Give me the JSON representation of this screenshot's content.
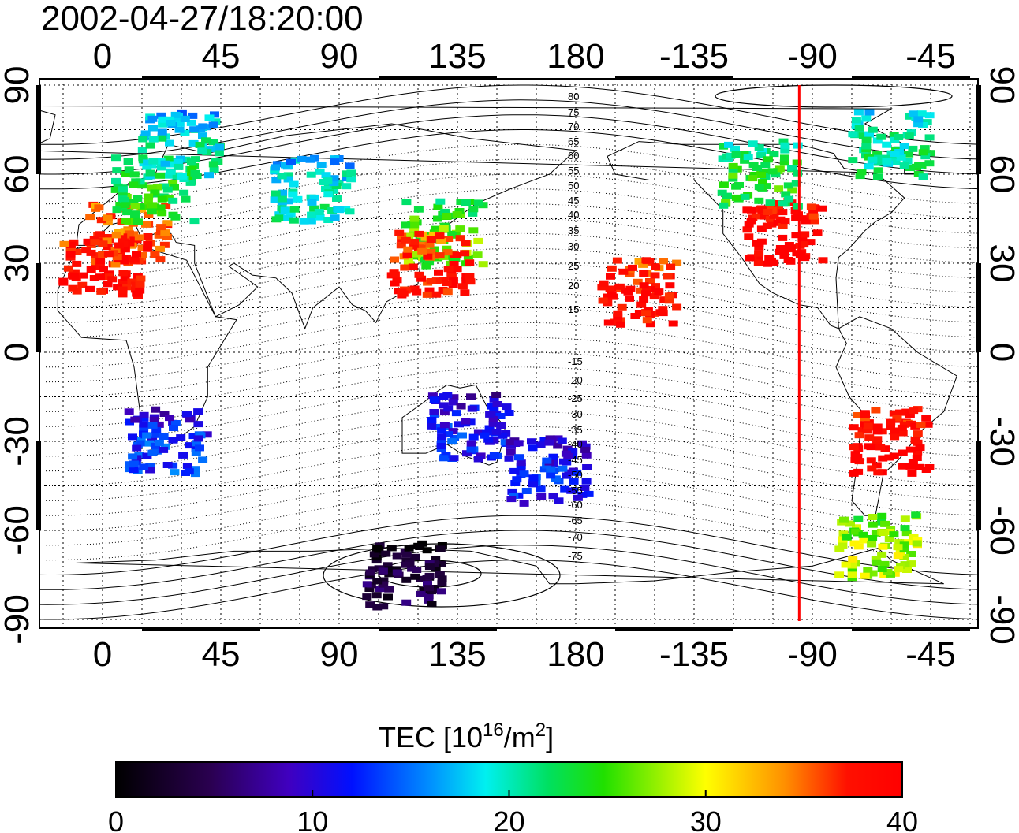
{
  "title": "2002-04-27/18:20:00",
  "map": {
    "lon_ticks": [
      "0",
      "45",
      "90",
      "135",
      "180",
      "-135",
      "-90",
      "-45"
    ],
    "lat_ticks": [
      "90",
      "60",
      "30",
      "0",
      "-30",
      "-60",
      "-90"
    ],
    "contour_labels": [
      "80",
      "75",
      "70",
      "65",
      "60",
      "55",
      "50",
      "45",
      "40",
      "35",
      "30",
      "25",
      "20",
      "15",
      "-15",
      "-20",
      "-25",
      "-30",
      "-35",
      "-40",
      "-45",
      "-50",
      "-55",
      "-60",
      "-65",
      "-70",
      "-75"
    ],
    "marker_longitude": -95,
    "colors": {
      "marker": "#ff0000",
      "frame": "#000000"
    }
  },
  "colorbar": {
    "label_main": "TEC  [10",
    "label_exp": "16",
    "label_mid": "/m",
    "label_exp2": "2",
    "label_end": "]",
    "ticks": [
      "0",
      "10",
      "20",
      "30",
      "40"
    ],
    "range": [
      0,
      40
    ]
  },
  "chart_data": {
    "type": "heatmap",
    "title": "2002-04-27/18:20:00",
    "xlabel": "",
    "ylabel": "",
    "x_ticks": [
      "0",
      "45",
      "90",
      "135",
      "180",
      "-135",
      "-90",
      "-45"
    ],
    "y_ticks": [
      "90",
      "60",
      "30",
      "0",
      "-30",
      "-60",
      "-90"
    ],
    "colorbar_label": "TEC [10^16/m^2]",
    "value_range": [
      0,
      40
    ],
    "regions": [
      {
        "lon": 10,
        "lat": 40,
        "value": 37
      },
      {
        "lon": 20,
        "lat": 55,
        "value": 24
      },
      {
        "lon": 0,
        "lat": 30,
        "value": 39
      },
      {
        "lon": 30,
        "lat": 70,
        "value": 20
      },
      {
        "lon": 80,
        "lat": 55,
        "value": 20
      },
      {
        "lon": 130,
        "lat": 40,
        "value": 26
      },
      {
        "lon": 125,
        "lat": 30,
        "value": 38
      },
      {
        "lon": 140,
        "lat": -25,
        "value": 12
      },
      {
        "lon": 170,
        "lat": -40,
        "value": 12
      },
      {
        "lon": 115,
        "lat": -75,
        "value": 4
      },
      {
        "lon": -100,
        "lat": 40,
        "value": 40
      },
      {
        "lon": -110,
        "lat": 60,
        "value": 24
      },
      {
        "lon": -60,
        "lat": -30,
        "value": 40
      },
      {
        "lon": -65,
        "lat": -65,
        "value": 28
      },
      {
        "lon": -60,
        "lat": 70,
        "value": 21
      },
      {
        "lon": 25,
        "lat": -30,
        "value": 13
      },
      {
        "lon": -155,
        "lat": 20,
        "value": 39
      }
    ]
  }
}
